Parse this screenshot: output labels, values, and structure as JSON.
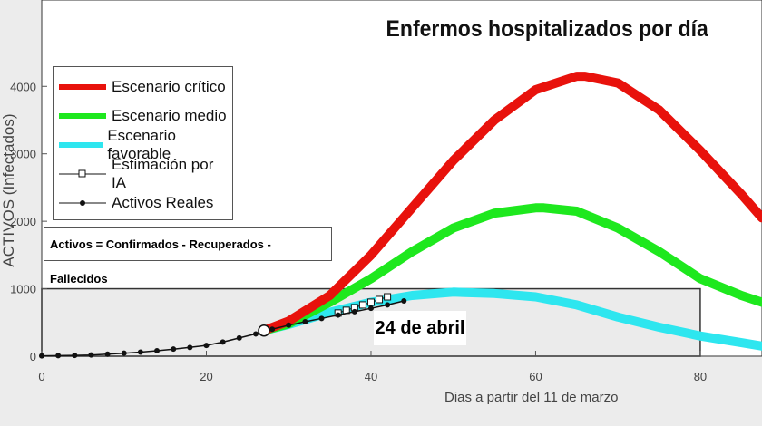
{
  "chart_data": {
    "type": "line",
    "title": "Enfermos hospitalizados por día",
    "xlabel": "Dias a partir del 11 de marzo",
    "ylabel": "ACTIVOS (Infectados)",
    "xlim": [
      0,
      87.5
    ],
    "ylim": [
      0,
      5280
    ],
    "xticks": [
      0,
      20,
      40,
      60,
      80
    ],
    "yticks": [
      0,
      1000,
      2000,
      3000,
      4000
    ],
    "legend_placement": "top-left",
    "grid": false,
    "note": "Activos = Confirmados - Recuperados - Fallecidos",
    "annotation": "24 de abril",
    "shaded_region": {
      "x": [
        0,
        80
      ],
      "y": [
        0,
        1000
      ]
    },
    "series": [
      {
        "name": "Escenario crítico",
        "color": "#e8120c",
        "x": [
          27,
          30,
          35,
          40,
          45,
          50,
          55,
          60,
          65,
          66,
          70,
          75,
          80,
          85,
          87.5
        ],
        "y": [
          380,
          520,
          900,
          1500,
          2200,
          2900,
          3500,
          3950,
          4150,
          4150,
          4050,
          3650,
          3050,
          2400,
          2050
        ]
      },
      {
        "name": "Escenario medio",
        "color": "#1ee81e",
        "x": [
          27,
          30,
          35,
          40,
          45,
          50,
          55,
          60,
          61,
          65,
          70,
          75,
          80,
          85,
          87.5
        ],
        "y": [
          380,
          480,
          800,
          1150,
          1550,
          1900,
          2120,
          2200,
          2200,
          2150,
          1900,
          1550,
          1150,
          900,
          800
        ]
      },
      {
        "name": "Escenario favorable",
        "color": "#2ee6ef",
        "x": [
          27,
          30,
          35,
          40,
          45,
          50,
          55,
          60,
          65,
          70,
          75,
          80,
          85,
          87.5
        ],
        "y": [
          380,
          470,
          650,
          800,
          900,
          950,
          930,
          880,
          760,
          580,
          430,
          300,
          200,
          150
        ]
      },
      {
        "name": "Estimación por IA",
        "color": "#111111",
        "marker": "square",
        "x": [
          36,
          37,
          38,
          39,
          40,
          41,
          42
        ],
        "y": [
          640,
          680,
          720,
          760,
          800,
          840,
          880
        ]
      },
      {
        "name": "Activos Reales",
        "color": "#111111",
        "marker": "dot",
        "x": [
          0,
          2,
          4,
          6,
          8,
          10,
          12,
          14,
          16,
          18,
          20,
          22,
          24,
          26,
          27,
          28,
          30,
          32,
          34,
          36,
          38,
          40,
          42,
          44
        ],
        "y": [
          5,
          8,
          12,
          18,
          30,
          45,
          60,
          80,
          105,
          130,
          160,
          210,
          270,
          330,
          380,
          400,
          460,
          510,
          560,
          610,
          660,
          710,
          760,
          820
        ]
      }
    ]
  }
}
